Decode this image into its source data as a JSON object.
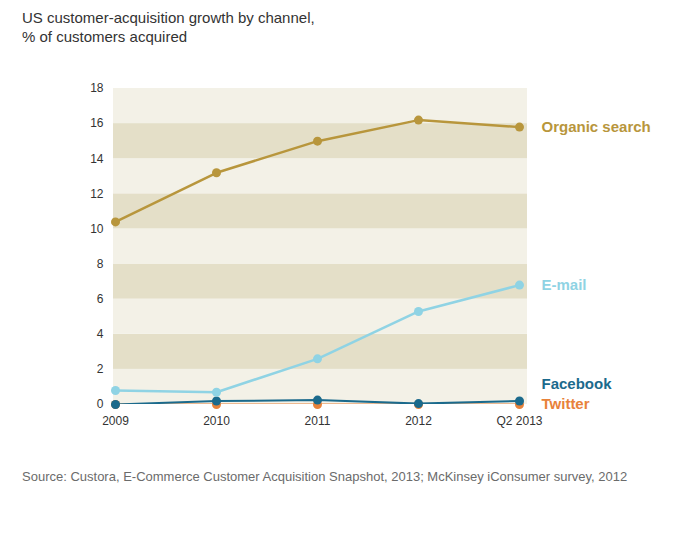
{
  "chart_data": {
    "type": "line",
    "title": "US customer-acquisition growth by channel,",
    "subtitle": "% of customers acquired",
    "caption": "Source: Custora, E-Commerce Customer Acquisition Snapshot, 2013; McKinsey iConsumer survey, 2012",
    "categories": [
      "2009",
      "2010",
      "2011",
      "2012",
      "Q2 2013"
    ],
    "series": [
      {
        "name": "Organic search",
        "color": "#b8963c",
        "values": [
          10.4,
          13.2,
          15.0,
          16.2,
          15.8
        ]
      },
      {
        "name": "E-mail",
        "color": "#8fd3e4",
        "values": [
          0.8,
          0.7,
          2.6,
          5.3,
          6.8
        ]
      },
      {
        "name": "Facebook",
        "color": "#1b6a8c",
        "values": [
          0.0,
          0.2,
          0.25,
          0.05,
          0.2
        ]
      },
      {
        "name": "Twitter",
        "color": "#e8823a",
        "values": [
          0,
          0,
          0,
          0,
          0
        ]
      }
    ],
    "ylim": [
      0,
      18
    ],
    "yticks": [
      0,
      2,
      4,
      6,
      8,
      10,
      12,
      14,
      16,
      18
    ],
    "grid": true,
    "marker": "circle"
  }
}
